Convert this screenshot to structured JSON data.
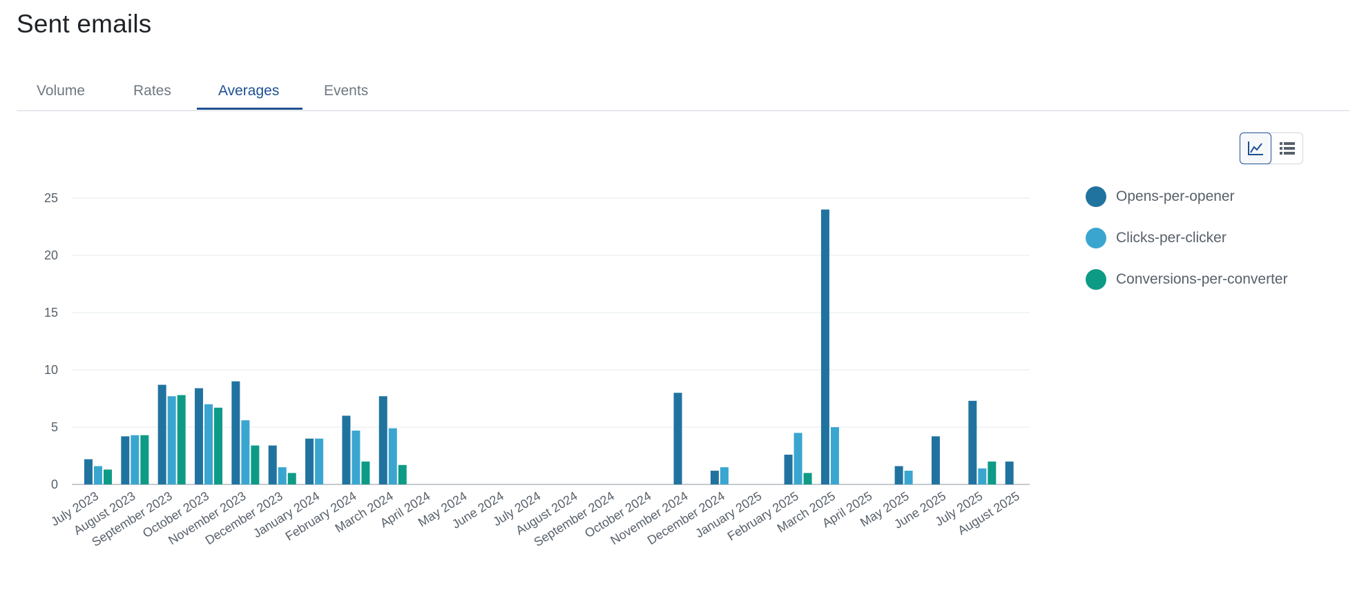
{
  "page": {
    "title": "Sent emails"
  },
  "tabs": [
    {
      "label": "Volume",
      "active": false
    },
    {
      "label": "Rates",
      "active": false
    },
    {
      "label": "Averages",
      "active": true
    },
    {
      "label": "Events",
      "active": false
    }
  ],
  "view_toggle": {
    "options": [
      "chart-icon",
      "list-icon"
    ],
    "selected": "chart-icon"
  },
  "colors": {
    "accent": "#1d4f91",
    "series": [
      "#21739f",
      "#3aa6d0",
      "#0e9b86"
    ]
  },
  "legend": [
    {
      "label": "Opens-per-opener",
      "color": "#21739f"
    },
    {
      "label": "Clicks-per-clicker",
      "color": "#3aa6d0"
    },
    {
      "label": "Conversions-per-converter",
      "color": "#0e9b86"
    }
  ],
  "chart_data": {
    "type": "bar",
    "categories": [
      "July 2023",
      "August 2023",
      "September 2023",
      "October 2023",
      "November 2023",
      "December 2023",
      "January 2024",
      "February 2024",
      "March 2024",
      "April 2024",
      "May 2024",
      "June 2024",
      "July 2024",
      "August 2024",
      "September 2024",
      "October 2024",
      "November 2024",
      "December 2024",
      "January 2025",
      "February 2025",
      "March 2025",
      "April 2025",
      "May 2025",
      "June 2025",
      "July 2025",
      "August 2025"
    ],
    "series": [
      {
        "name": "Opens-per-opener",
        "values": [
          2.2,
          4.2,
          8.7,
          8.4,
          9.0,
          3.4,
          4.0,
          6.0,
          7.7,
          null,
          null,
          null,
          null,
          null,
          null,
          null,
          8.0,
          1.2,
          null,
          2.6,
          24.0,
          null,
          1.6,
          4.2,
          7.3,
          2.0
        ]
      },
      {
        "name": "Clicks-per-clicker",
        "values": [
          1.6,
          4.3,
          7.7,
          7.0,
          5.6,
          1.5,
          4.0,
          4.7,
          4.9,
          null,
          null,
          null,
          null,
          null,
          null,
          null,
          null,
          1.5,
          null,
          4.5,
          5.0,
          null,
          1.2,
          null,
          1.4,
          null
        ]
      },
      {
        "name": "Conversions-per-converter",
        "values": [
          1.3,
          4.3,
          7.8,
          6.7,
          3.4,
          1.0,
          null,
          2.0,
          1.7,
          null,
          null,
          null,
          null,
          null,
          null,
          null,
          null,
          null,
          null,
          1.0,
          null,
          null,
          null,
          null,
          2.0,
          null
        ]
      }
    ],
    "yticks": [
      0,
      5,
      10,
      15,
      20,
      25
    ],
    "ylim": [
      0,
      25
    ],
    "grid": true,
    "legend_position": "right"
  }
}
